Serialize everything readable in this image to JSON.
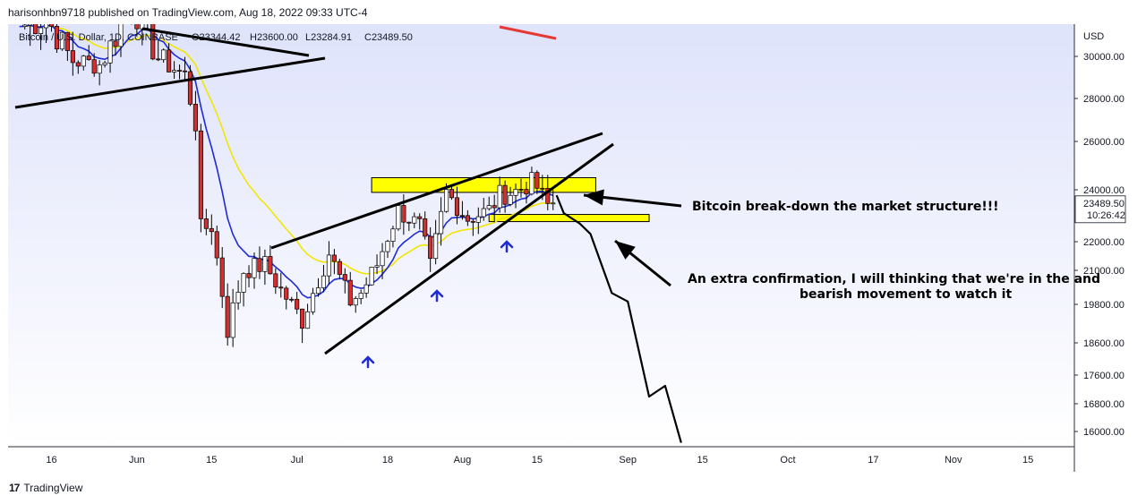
{
  "header": {
    "publisher_text": "harisonhbn9718 published on TradingView.com, Aug 18, 2022 09:33 UTC-4"
  },
  "footer": {
    "brand": "TradingView",
    "mark": "17"
  },
  "colors": {
    "up": "#ffffff",
    "down": "#d32f2f",
    "ema_fast": "#1e2bd6",
    "ema_slow": "#f2e600",
    "zone": "#ffff00",
    "trendline": "#000000",
    "arrow_up": "#1e2bd6",
    "bg_top": "#dfe3fb"
  },
  "legend": {
    "symbol": "Bitcoin / U.S. Dollar, 1D, COINBASE",
    "open": "O23344.42",
    "high": "H23600.00",
    "low": "L23284.91",
    "close": "C23489.50"
  },
  "chart_data": {
    "type": "candlestick",
    "currency": "USD",
    "y_ticks": [
      30000,
      28000,
      26000,
      24000,
      22000,
      21000,
      19800,
      18600,
      17600,
      16800,
      16000
    ],
    "y_tick_labels": [
      "30000.00",
      "28000.00",
      "26000.00",
      "24000.00",
      "22000.00",
      "21000.00",
      "19800.00",
      "18600.00",
      "17600.00",
      "16800.00",
      "16000.00"
    ],
    "x_tick_labels": [
      {
        "label": "16",
        "date": "2022-05-16"
      },
      {
        "label": "Jun",
        "date": "2022-06-01"
      },
      {
        "label": "15",
        "date": "2022-06-15"
      },
      {
        "label": "Jul",
        "date": "2022-07-01"
      },
      {
        "label": "18",
        "date": "2022-07-18"
      },
      {
        "label": "Aug",
        "date": "2022-08-01"
      },
      {
        "label": "15",
        "date": "2022-08-15"
      },
      {
        "label": "Sep",
        "date": "2022-09-01"
      },
      {
        "label": "15",
        "date": "2022-09-15"
      },
      {
        "label": "Oct",
        "date": "2022-10-01"
      },
      {
        "label": "17",
        "date": "2022-10-17"
      },
      {
        "label": "Nov",
        "date": "2022-11-01"
      },
      {
        "label": "15",
        "date": "2022-11-15"
      }
    ],
    "last_price": {
      "value": "23489.50",
      "countdown": "10:26:42"
    },
    "anchor_closes": [
      [
        "2022-05-10",
        31000
      ],
      [
        "2022-05-15",
        31300
      ],
      [
        "2022-05-20",
        29800
      ],
      [
        "2022-05-25",
        29600
      ],
      [
        "2022-05-31",
        31800
      ],
      [
        "2022-06-05",
        29900
      ],
      [
        "2022-06-10",
        29100
      ],
      [
        "2022-06-12",
        26800
      ],
      [
        "2022-06-13",
        22500
      ],
      [
        "2022-06-15",
        22600
      ],
      [
        "2022-06-18",
        19000
      ],
      [
        "2022-06-21",
        21000
      ],
      [
        "2022-06-25",
        21200
      ],
      [
        "2022-06-28",
        20300
      ],
      [
        "2022-07-02",
        19300
      ],
      [
        "2022-07-07",
        21600
      ],
      [
        "2022-07-11",
        19900
      ],
      [
        "2022-07-13",
        20200
      ],
      [
        "2022-07-16",
        21200
      ],
      [
        "2022-07-20",
        23200
      ],
      [
        "2022-07-24",
        22600
      ],
      [
        "2022-07-26",
        21100
      ],
      [
        "2022-07-29",
        23900
      ],
      [
        "2022-08-02",
        22900
      ],
      [
        "2022-08-06",
        23200
      ],
      [
        "2022-08-08",
        23800
      ],
      [
        "2022-08-11",
        23950
      ],
      [
        "2022-08-14",
        24300
      ],
      [
        "2022-08-15",
        24100
      ],
      [
        "2022-08-17",
        23400
      ],
      [
        "2022-08-18",
        23489.5
      ]
    ],
    "annotations": {
      "text_1": "Bitcoin break-down the market structure!!!",
      "text_2": "An extra confirmation, I will thinking that we're in the and",
      "text_3": "bearish movement to watch it",
      "resistance_zone": [
        23900,
        24500
      ],
      "support_zone": [
        22900,
        23050
      ],
      "projection_path": [
        [
          "2022-08-20",
          23100
        ],
        [
          "2022-08-23",
          22700
        ],
        [
          "2022-08-25",
          22300
        ],
        [
          "2022-08-29",
          20200
        ],
        [
          "2022-09-01",
          19900
        ],
        [
          "2022-09-05",
          17000
        ],
        [
          "2022-09-08",
          17300
        ],
        [
          "2022-09-11",
          15700
        ]
      ]
    }
  }
}
